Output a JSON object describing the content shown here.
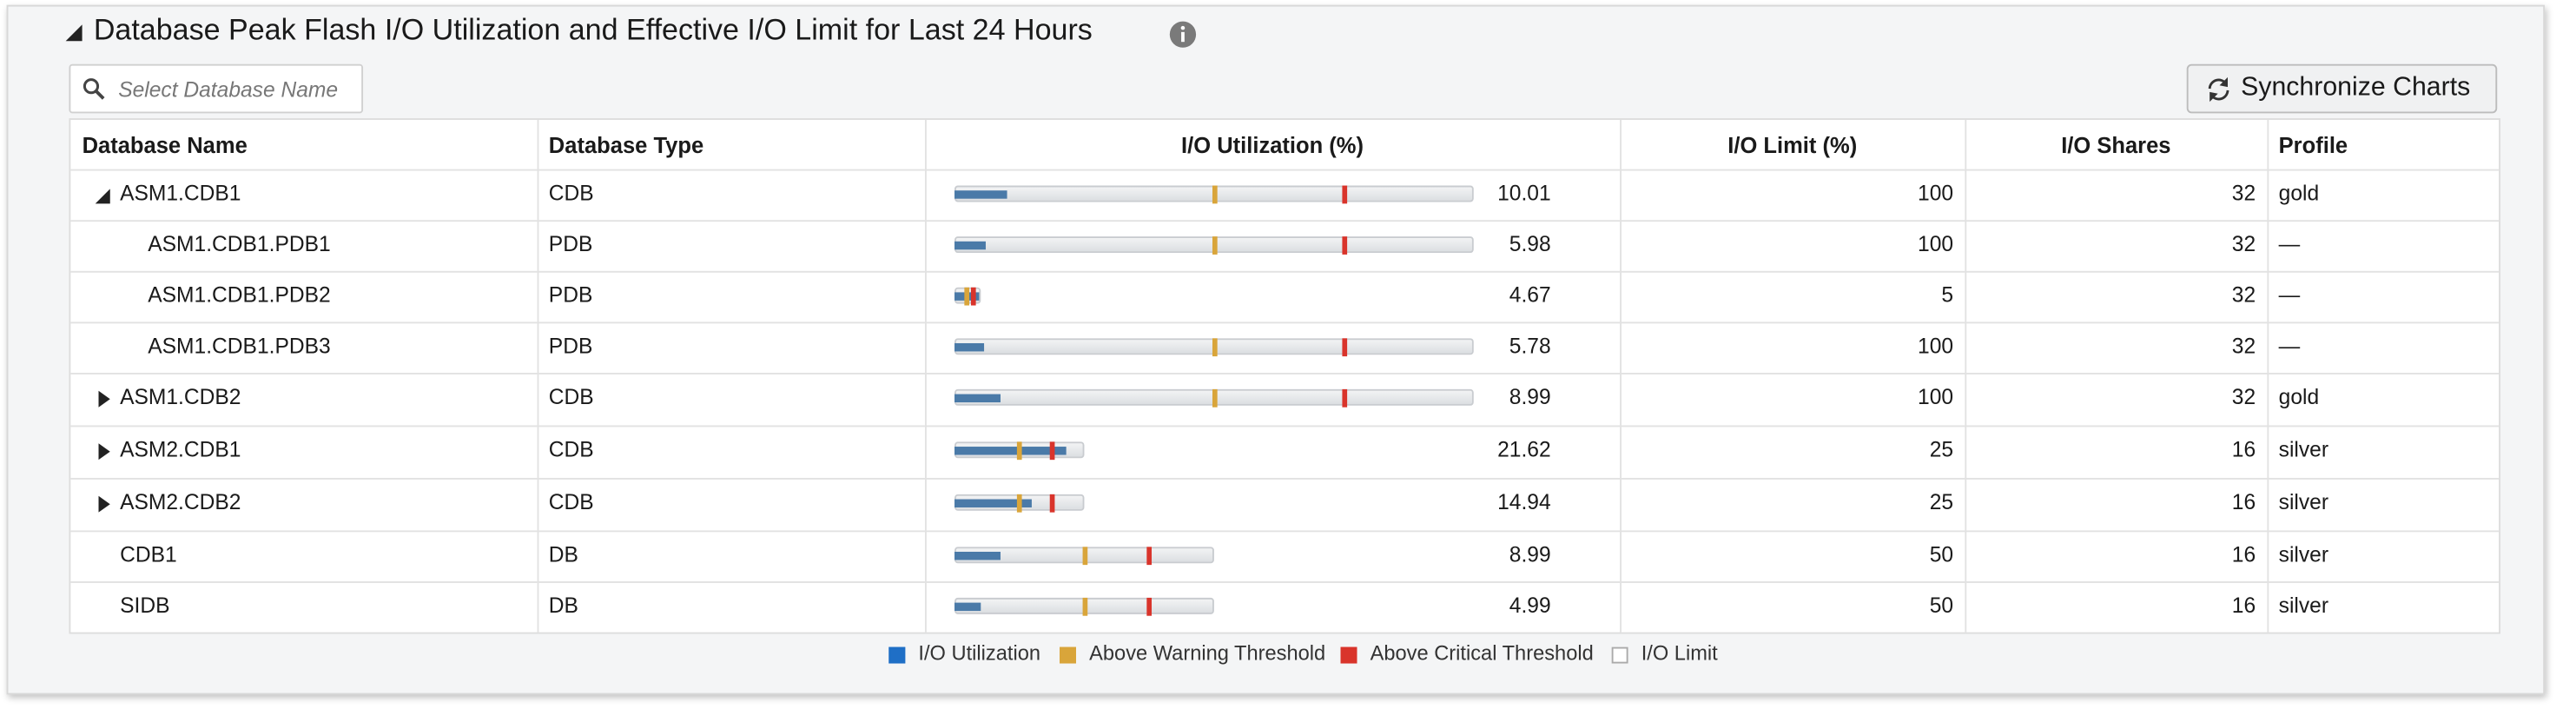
{
  "header": {
    "title": "Database Peak Flash I/O Utilization and Effective I/O Limit for Last 24 Hours",
    "search_placeholder": "Select Database Name",
    "sync_button": "Synchronize Charts"
  },
  "table": {
    "columns": [
      "Database Name",
      "Database Type",
      "I/O Utilization (%)",
      "I/O Limit (%)",
      "I/O Shares",
      "Profile"
    ],
    "rows": [
      {
        "name": "ASM1.CDB1",
        "type": "CDB",
        "utilization": 10.01,
        "limit": 100,
        "warning": 50,
        "critical": 75,
        "shares": 32,
        "profile": "gold",
        "level": 0,
        "expander": "expanded"
      },
      {
        "name": "ASM1.CDB1.PDB1",
        "type": "PDB",
        "utilization": 5.98,
        "limit": 100,
        "warning": 50,
        "critical": 75,
        "shares": 32,
        "profile": "—",
        "level": 1,
        "expander": "none"
      },
      {
        "name": "ASM1.CDB1.PDB2",
        "type": "PDB",
        "utilization": 4.67,
        "limit": 5,
        "warning": 2.5,
        "critical": 3.75,
        "shares": 32,
        "profile": "—",
        "level": 1,
        "expander": "none"
      },
      {
        "name": "ASM1.CDB1.PDB3",
        "type": "PDB",
        "utilization": 5.78,
        "limit": 100,
        "warning": 50,
        "critical": 75,
        "shares": 32,
        "profile": "—",
        "level": 1,
        "expander": "none"
      },
      {
        "name": "ASM1.CDB2",
        "type": "CDB",
        "utilization": 8.99,
        "limit": 100,
        "warning": 50,
        "critical": 75,
        "shares": 32,
        "profile": "gold",
        "level": 0,
        "expander": "collapsed"
      },
      {
        "name": "ASM2.CDB1",
        "type": "CDB",
        "utilization": 21.62,
        "limit": 25,
        "warning": 12.5,
        "critical": 18.75,
        "shares": 16,
        "profile": "silver",
        "level": 0,
        "expander": "collapsed"
      },
      {
        "name": "ASM2.CDB2",
        "type": "CDB",
        "utilization": 14.94,
        "limit": 25,
        "warning": 12.5,
        "critical": 18.75,
        "shares": 16,
        "profile": "silver",
        "level": 0,
        "expander": "collapsed"
      },
      {
        "name": "CDB1",
        "type": "DB",
        "utilization": 8.99,
        "limit": 50,
        "warning": 25,
        "critical": 37.5,
        "shares": 16,
        "profile": "silver",
        "level": 0,
        "expander": "none"
      },
      {
        "name": "SIDB",
        "type": "DB",
        "utilization": 4.99,
        "limit": 50,
        "warning": 25,
        "critical": 37.5,
        "shares": 16,
        "profile": "silver",
        "level": 0,
        "expander": "none"
      }
    ]
  },
  "legend": [
    {
      "name": "I/O Utilization",
      "color": "#1f6fc6"
    },
    {
      "name": "Above Warning Threshold",
      "color": "#d9a53a"
    },
    {
      "name": "Above Critical Threshold",
      "color": "#d9342b"
    },
    {
      "name": "I/O Limit",
      "color": "#ffffff"
    }
  ]
}
